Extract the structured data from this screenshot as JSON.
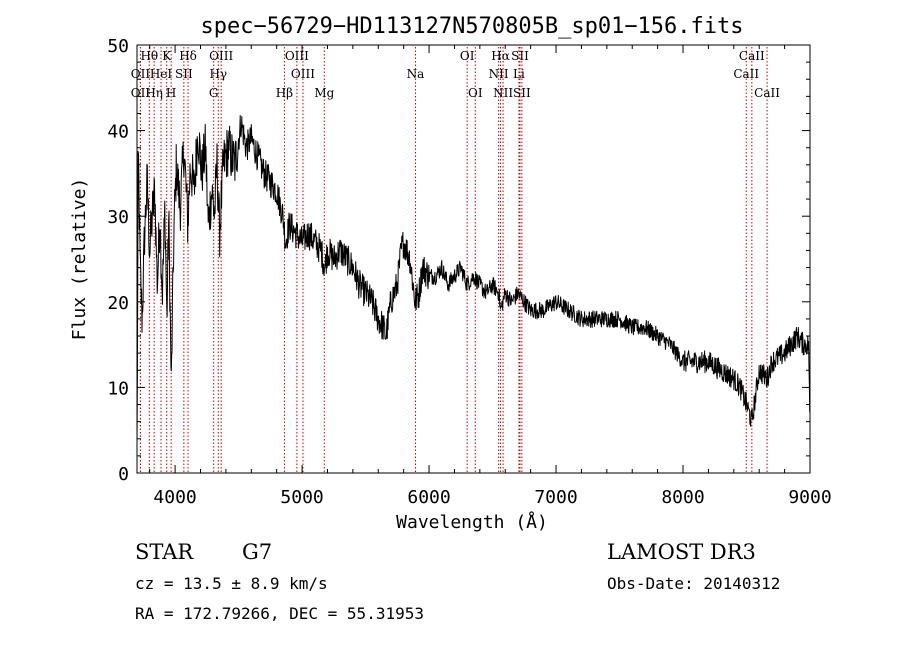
{
  "chart_data": {
    "type": "line",
    "title": "spec−56729−HD113127N570805B_sp01−156.fits",
    "xlabel": "Wavelength (Å)",
    "ylabel": "Flux (relative)",
    "xlim": [
      3700,
      9000
    ],
    "ylim": [
      0,
      50
    ],
    "xticks": [
      4000,
      5000,
      6000,
      7000,
      8000,
      9000
    ],
    "yticks": [
      0,
      10,
      20,
      30,
      40,
      50
    ],
    "grid": false,
    "series": [
      {
        "name": "flux",
        "anchors": [
          [
            3700,
            2
          ],
          [
            3710,
            38
          ],
          [
            3725,
            24
          ],
          [
            3740,
            18
          ],
          [
            3760,
            28
          ],
          [
            3780,
            34
          ],
          [
            3800,
            26
          ],
          [
            3820,
            30
          ],
          [
            3840,
            33
          ],
          [
            3860,
            22
          ],
          [
            3880,
            30
          ],
          [
            3900,
            21
          ],
          [
            3920,
            31
          ],
          [
            3935,
            18
          ],
          [
            3950,
            30
          ],
          [
            3970,
            10
          ],
          [
            3990,
            28
          ],
          [
            4010,
            36
          ],
          [
            4040,
            31
          ],
          [
            4070,
            38
          ],
          [
            4100,
            29
          ],
          [
            4120,
            36
          ],
          [
            4150,
            33
          ],
          [
            4180,
            40
          ],
          [
            4210,
            35
          ],
          [
            4240,
            38
          ],
          [
            4260,
            29
          ],
          [
            4290,
            33
          ],
          [
            4310,
            30
          ],
          [
            4330,
            36
          ],
          [
            4350,
            28
          ],
          [
            4380,
            36
          ],
          [
            4420,
            38
          ],
          [
            4470,
            36
          ],
          [
            4520,
            41
          ],
          [
            4560,
            38
          ],
          [
            4600,
            39
          ],
          [
            4650,
            37
          ],
          [
            4700,
            35
          ],
          [
            4750,
            34
          ],
          [
            4800,
            33
          ],
          [
            4850,
            30
          ],
          [
            4870,
            27
          ],
          [
            4900,
            29
          ],
          [
            4950,
            28
          ],
          [
            5000,
            27
          ],
          [
            5050,
            28
          ],
          [
            5100,
            27
          ],
          [
            5150,
            26
          ],
          [
            5180,
            24
          ],
          [
            5200,
            26
          ],
          [
            5250,
            25
          ],
          [
            5300,
            26
          ],
          [
            5350,
            25
          ],
          [
            5400,
            24
          ],
          [
            5450,
            22
          ],
          [
            5500,
            21
          ],
          [
            5550,
            20
          ],
          [
            5600,
            18
          ],
          [
            5640,
            17
          ],
          [
            5660,
            16
          ],
          [
            5700,
            20
          ],
          [
            5750,
            22
          ],
          [
            5780,
            26
          ],
          [
            5800,
            27
          ],
          [
            5850,
            25
          ],
          [
            5890,
            20
          ],
          [
            5920,
            21
          ],
          [
            5950,
            24
          ],
          [
            6000,
            23
          ],
          [
            6050,
            23
          ],
          [
            6100,
            24
          ],
          [
            6150,
            22
          ],
          [
            6200,
            23
          ],
          [
            6250,
            24
          ],
          [
            6300,
            22
          ],
          [
            6350,
            23
          ],
          [
            6400,
            22
          ],
          [
            6450,
            21
          ],
          [
            6500,
            22
          ],
          [
            6550,
            21
          ],
          [
            6563,
            19
          ],
          [
            6600,
            21
          ],
          [
            6650,
            20
          ],
          [
            6700,
            21
          ],
          [
            6750,
            20
          ],
          [
            6800,
            19
          ],
          [
            6900,
            19
          ],
          [
            7000,
            20
          ],
          [
            7100,
            19
          ],
          [
            7200,
            18
          ],
          [
            7300,
            18
          ],
          [
            7400,
            18
          ],
          [
            7500,
            18
          ],
          [
            7600,
            17
          ],
          [
            7700,
            17
          ],
          [
            7800,
            16
          ],
          [
            7900,
            15
          ],
          [
            8000,
            13
          ],
          [
            8100,
            13
          ],
          [
            8200,
            13
          ],
          [
            8300,
            12
          ],
          [
            8400,
            11
          ],
          [
            8450,
            10
          ],
          [
            8500,
            8
          ],
          [
            8542,
            6
          ],
          [
            8600,
            12
          ],
          [
            8662,
            11
          ],
          [
            8700,
            13
          ],
          [
            8800,
            14
          ],
          [
            8900,
            16
          ],
          [
            8950,
            15
          ],
          [
            8990,
            15
          ],
          [
            9000,
            4
          ]
        ]
      }
    ],
    "lines": [
      {
        "label": "Hθ",
        "x": 3797,
        "row": 0
      },
      {
        "label": "OII",
        "x": 3727,
        "row": 1
      },
      {
        "label": "OII",
        "x": 3727,
        "row": 2
      },
      {
        "label": "Hη",
        "x": 3835,
        "row": 2
      },
      {
        "label": "HeI",
        "x": 3889,
        "row": 1
      },
      {
        "label": "K",
        "x": 3934,
        "row": 0
      },
      {
        "label": "H",
        "x": 3969,
        "row": 2
      },
      {
        "label": "SII",
        "x": 4069,
        "row": 1
      },
      {
        "label": "Hδ",
        "x": 4102,
        "row": 0
      },
      {
        "label": "OIII",
        "x": 4363,
        "row": 0
      },
      {
        "label": "Hγ",
        "x": 4340,
        "row": 1
      },
      {
        "label": "G",
        "x": 4304,
        "row": 2
      },
      {
        "label": "Hβ",
        "x": 4861,
        "row": 2
      },
      {
        "label": "OIII",
        "x": 4959,
        "row": 0
      },
      {
        "label": "OIII",
        "x": 5007,
        "row": 1
      },
      {
        "label": "Mg",
        "x": 5175,
        "row": 2
      },
      {
        "label": "Na",
        "x": 5893,
        "row": 1
      },
      {
        "label": "OI",
        "x": 6300,
        "row": 0
      },
      {
        "label": "OI",
        "x": 6364,
        "row": 2
      },
      {
        "label": "Hα",
        "x": 6563,
        "row": 0
      },
      {
        "label": "NII",
        "x": 6548,
        "row": 1
      },
      {
        "label": "NII",
        "x": 6583,
        "row": 2
      },
      {
        "label": "SII",
        "x": 6716,
        "row": 0
      },
      {
        "label": "Li",
        "x": 6708,
        "row": 1
      },
      {
        "label": "SII",
        "x": 6731,
        "row": 2
      },
      {
        "label": "CaII",
        "x": 8542,
        "row": 0
      },
      {
        "label": "CaII",
        "x": 8498,
        "row": 1
      },
      {
        "label": "CaII",
        "x": 8662,
        "row": 2
      }
    ]
  },
  "info": {
    "object_class": "STAR",
    "subclass": "G7",
    "cz": "cz = 13.5 ± 8.9 km/s",
    "radec": "RA = 172.79266, DEC =  55.31953",
    "survey": "LAMOST DR3",
    "obs_date": "Obs-Date: 20140312"
  },
  "colors": {
    "line": "#000000",
    "marker": "#cc0000"
  }
}
